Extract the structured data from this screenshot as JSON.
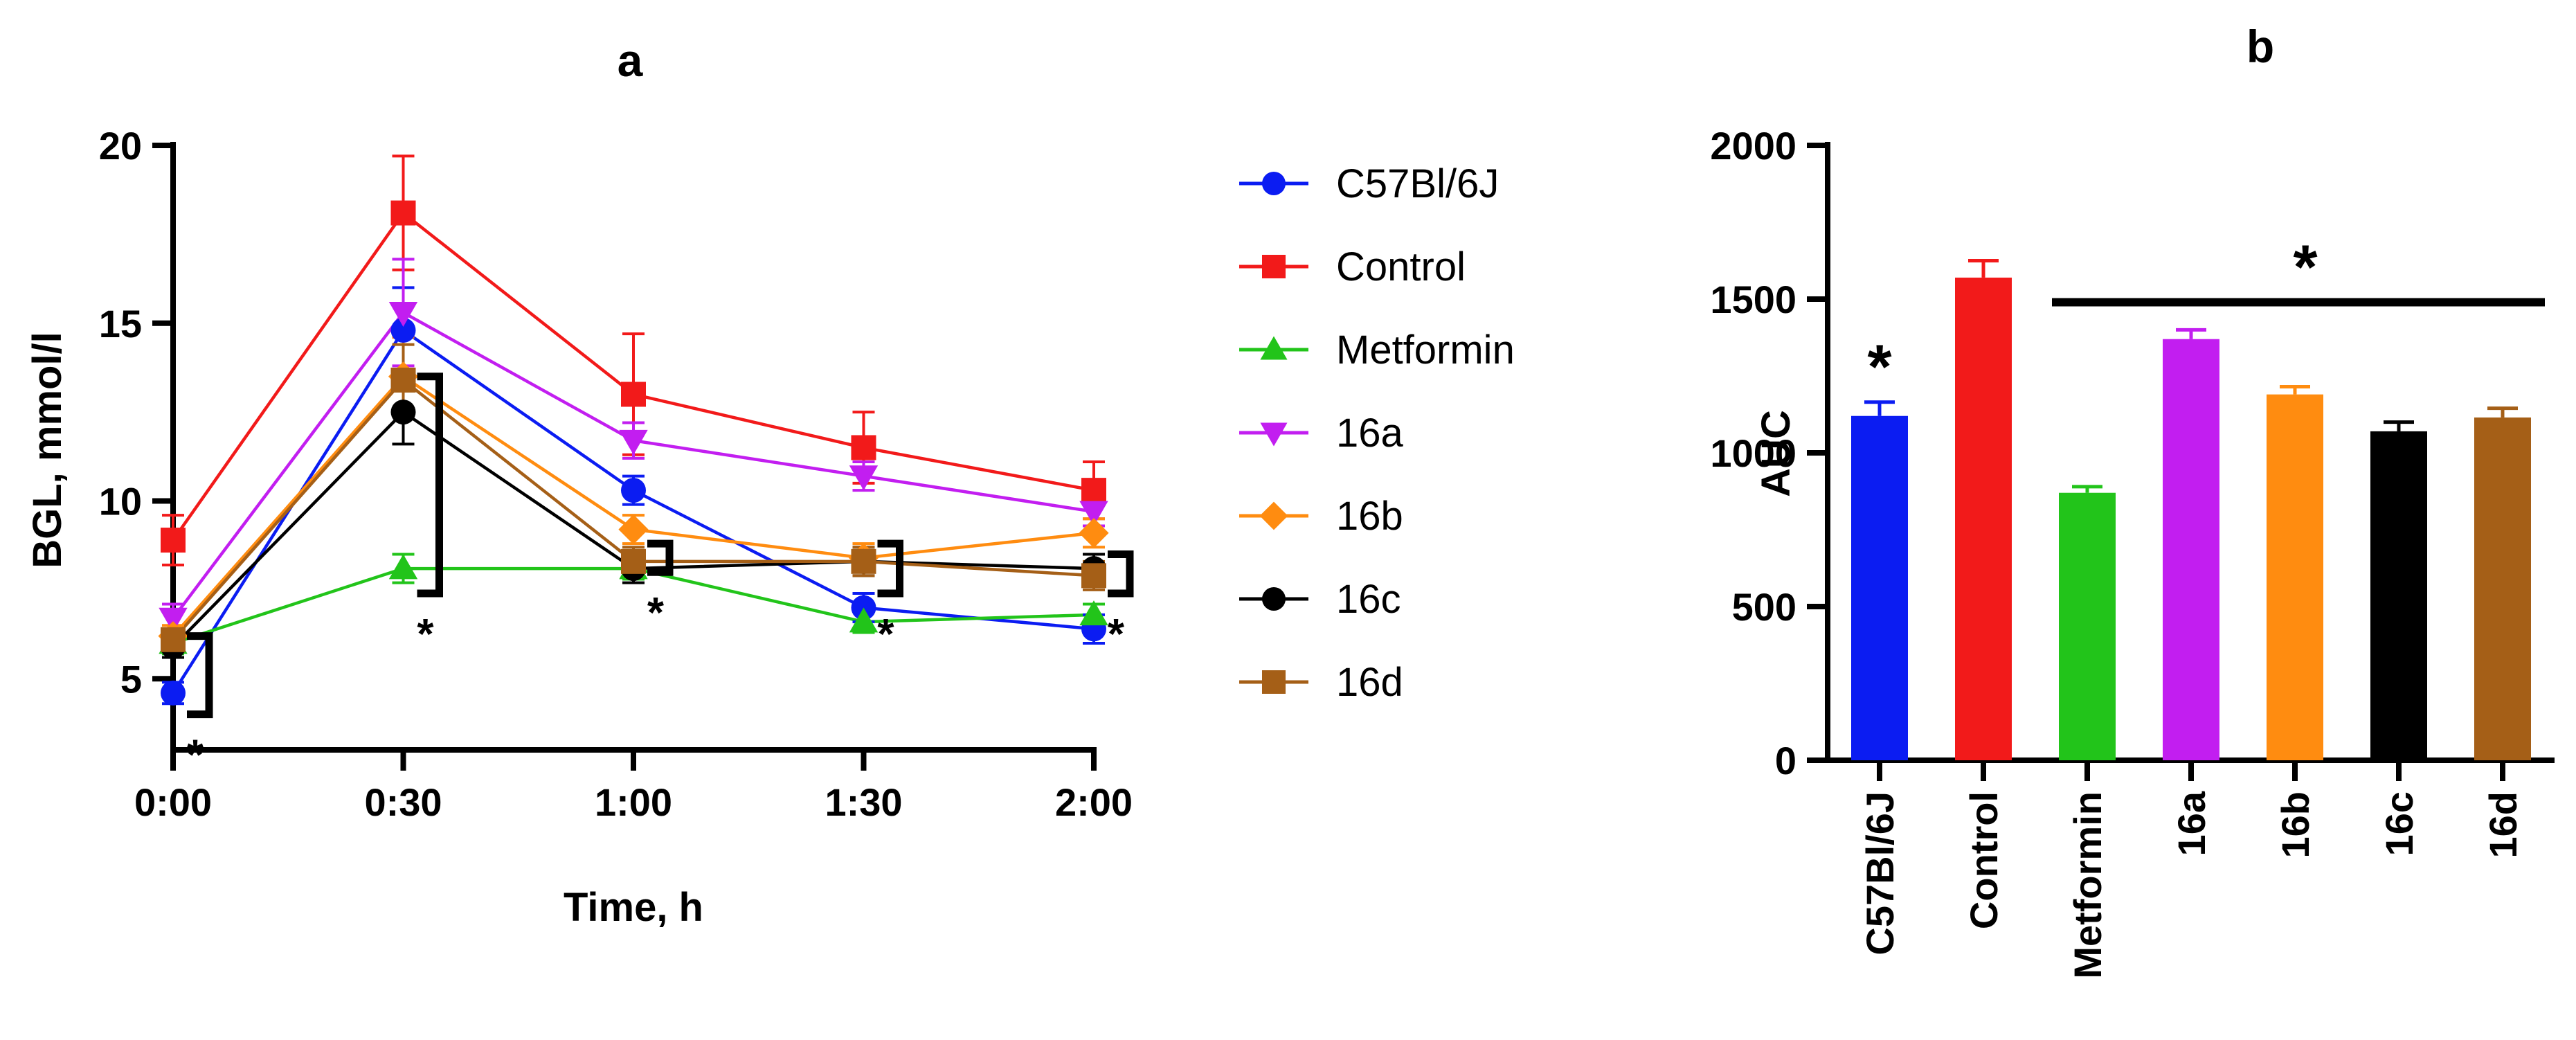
{
  "chart_data": [
    {
      "type": "line",
      "title": "a",
      "xlabel": "Time, h",
      "ylabel": "BGL, mmol/l",
      "x": [
        "0:00",
        "0:30",
        "1:00",
        "1:30",
        "2:00"
      ],
      "ylim": [
        3,
        20
      ],
      "yticks": [
        "5",
        "10",
        "15",
        "20"
      ],
      "legend_position": "right",
      "series": [
        {
          "name": "C57Bl/6J",
          "color": "#0b1cf2",
          "marker": "circle",
          "values": [
            4.6,
            14.8,
            10.3,
            7.0,
            6.4
          ],
          "errors": [
            0.3,
            1.2,
            0.4,
            0.4,
            0.4
          ]
        },
        {
          "name": "Control",
          "color": "#f21a1a",
          "marker": "square",
          "values": [
            8.9,
            18.1,
            13.0,
            11.5,
            10.3
          ],
          "errors": [
            0.7,
            1.6,
            1.7,
            1.0,
            0.8
          ]
        },
        {
          "name": "Metformin",
          "color": "#22c41a",
          "marker": "triangle-up",
          "values": [
            6.0,
            8.1,
            8.1,
            6.6,
            6.8
          ],
          "errors": [
            0.3,
            0.4,
            0.3,
            0.3,
            0.3
          ]
        },
        {
          "name": "16a",
          "color": "#c21ef0",
          "marker": "triangle-down",
          "values": [
            6.7,
            15.3,
            11.7,
            10.7,
            9.7
          ],
          "errors": [
            0.4,
            1.5,
            0.5,
            0.4,
            0.4
          ]
        },
        {
          "name": "16b",
          "color": "#ff8c10",
          "marker": "diamond",
          "values": [
            6.2,
            13.5,
            9.2,
            8.4,
            9.1
          ],
          "errors": [
            0.3,
            1.1,
            0.4,
            0.4,
            0.4
          ]
        },
        {
          "name": "16c",
          "color": "#000000",
          "marker": "circle",
          "values": [
            5.9,
            12.5,
            8.1,
            8.3,
            8.1
          ],
          "errors": [
            0.3,
            0.9,
            0.4,
            0.4,
            0.4
          ]
        },
        {
          "name": "16d",
          "color": "#a55f17",
          "marker": "square",
          "values": [
            6.1,
            13.4,
            8.3,
            8.3,
            7.9
          ],
          "errors": [
            0.3,
            1.0,
            0.4,
            0.4,
            0.4
          ]
        }
      ],
      "annotations": [
        {
          "x": "0:00",
          "bracket_range": [
            4.0,
            6.2
          ],
          "label": "*"
        },
        {
          "x": "0:30",
          "bracket_range": [
            7.4,
            13.5
          ],
          "label": "*"
        },
        {
          "x": "1:00",
          "bracket_range": [
            8.0,
            8.8
          ],
          "label": "*"
        },
        {
          "x": "1:30",
          "bracket_range": [
            7.4,
            8.8
          ],
          "label": "*"
        },
        {
          "x": "2:00",
          "bracket_range": [
            7.4,
            8.5
          ],
          "label": "*"
        }
      ]
    },
    {
      "type": "bar",
      "title": "b",
      "xlabel": "",
      "ylabel": "AUC",
      "categories": [
        "C57Bl/6J",
        "Control",
        "Metformin",
        "16a",
        "16b",
        "16c",
        "16d"
      ],
      "values": [
        1120,
        1570,
        870,
        1370,
        1190,
        1070,
        1115
      ],
      "errors": [
        45,
        55,
        20,
        30,
        25,
        30,
        30
      ],
      "colors": [
        "#0b1cf2",
        "#f21a1a",
        "#22c41a",
        "#c21ef0",
        "#ff8c10",
        "#000000",
        "#a55f17"
      ],
      "ylim": [
        0,
        2000
      ],
      "yticks": [
        "0",
        "500",
        "1000",
        "1500",
        "2000"
      ],
      "annotations": [
        {
          "category": "C57Bl/6J",
          "label": "*"
        },
        {
          "from": "Metformin",
          "to": "16d",
          "label": "*"
        }
      ]
    }
  ]
}
